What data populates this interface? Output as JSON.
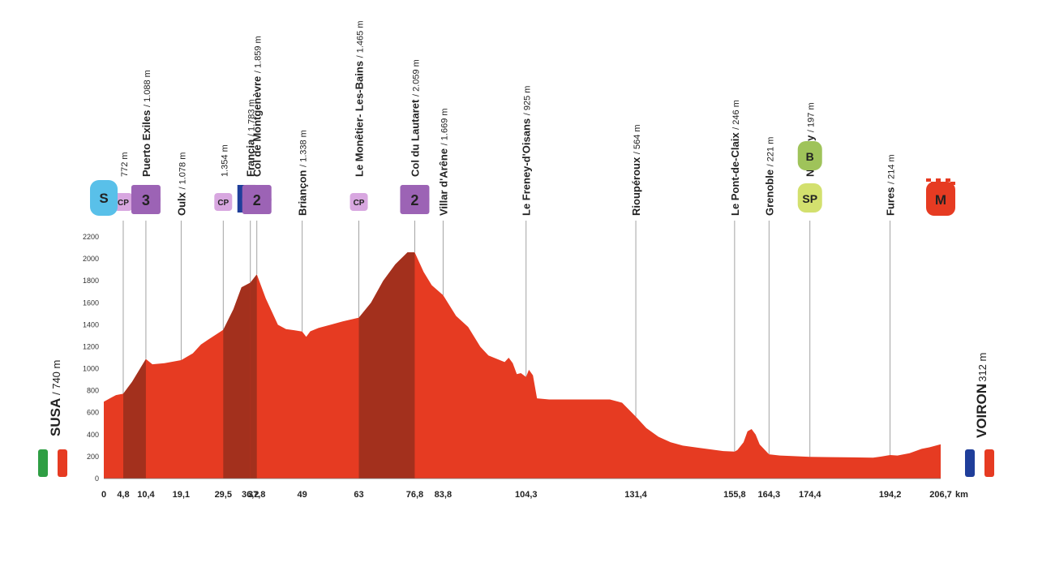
{
  "chart_data": {
    "type": "area",
    "unit_km": "km",
    "ylim": [
      0,
      2300
    ],
    "yticks": [
      0,
      200,
      400,
      600,
      800,
      1000,
      1200,
      1400,
      1600,
      1800,
      2000,
      2200
    ],
    "xticks": [
      "0",
      "4,8",
      "10,4",
      "19,1",
      "29,5",
      "36,2",
      "37,8",
      "49",
      "63",
      "76,8",
      "83,8",
      "104,3",
      "131,4",
      "155,8",
      "164,3",
      "174,4",
      "194,2",
      "206,7"
    ],
    "xtick_values": [
      0,
      4.8,
      10.4,
      19.1,
      29.5,
      36.2,
      37.8,
      49,
      63,
      76.8,
      83.8,
      104.3,
      131.4,
      155.8,
      164.3,
      174.4,
      194.2,
      206.7
    ],
    "start": {
      "name": "SUSA",
      "altitude": "/ 740 m"
    },
    "finish": {
      "name": "VOIRON",
      "altitude": "/ 312 m"
    },
    "profile": {
      "x": [
        0,
        2,
        3,
        4.8,
        7,
        10.4,
        12,
        15,
        19.1,
        22,
        24,
        26,
        29.5,
        32,
        34,
        36.2,
        37.8,
        40,
        43,
        45,
        47,
        49,
        50,
        51,
        53,
        56,
        59,
        63,
        66,
        69,
        72,
        75,
        76.8,
        79,
        81,
        83.8,
        87,
        90,
        93,
        95,
        99,
        100,
        101,
        102,
        103,
        104.3,
        105,
        106,
        107,
        110,
        115,
        120,
        125,
        128,
        131.4,
        134,
        137,
        140,
        143,
        147,
        150,
        153,
        155.8,
        156.5,
        158,
        159,
        160,
        161,
        162,
        164.3,
        167,
        170,
        174.4,
        180,
        185,
        190,
        192,
        194.2,
        196,
        199,
        202,
        204,
        206.7
      ],
      "y": [
        700,
        740,
        760,
        772,
        880,
        1088,
        1040,
        1050,
        1078,
        1140,
        1220,
        1270,
        1354,
        1540,
        1740,
        1783,
        1859,
        1640,
        1400,
        1360,
        1350,
        1338,
        1290,
        1340,
        1370,
        1400,
        1430,
        1465,
        1600,
        1800,
        1950,
        2059,
        2059,
        1880,
        1760,
        1669,
        1480,
        1380,
        1200,
        1120,
        1060,
        1100,
        1050,
        950,
        960,
        925,
        990,
        940,
        730,
        720,
        720,
        720,
        720,
        690,
        564,
        460,
        380,
        330,
        300,
        280,
        265,
        250,
        246,
        260,
        330,
        430,
        450,
        400,
        310,
        221,
        210,
        205,
        197,
        195,
        193,
        190,
        200,
        214,
        210,
        230,
        270,
        285,
        312
      ]
    },
    "steep_segments": [
      [
        4.8,
        10.4
      ],
      [
        29.5,
        36.2
      ],
      [
        36.2,
        37.8
      ],
      [
        63,
        76.8
      ]
    ],
    "colors": {
      "fill": "#e63b22",
      "steep": "#a3301d",
      "sprint": "#d3e06e",
      "bonus": "#9fc35a",
      "climb": "#9c63b5",
      "cp": "#d8a7e0",
      "start": "#59c0e9",
      "finish": "#e63b22"
    },
    "points": [
      {
        "km": 4.8,
        "name": "",
        "altitude": "772 m",
        "badge": "CP",
        "badge_type": "cp"
      },
      {
        "km": 10.4,
        "name": "Puerto Exiles",
        "altitude": "/ 1.088 m",
        "badge": "3",
        "badge_type": "climb"
      },
      {
        "km": 19.1,
        "name": "Oulx",
        "altitude": "/ 1.078 m",
        "badge": "",
        "badge_type": ""
      },
      {
        "km": 29.5,
        "name": "",
        "altitude": "1.354 m",
        "badge": "CP",
        "badge_type": "cp"
      },
      {
        "km": 36.2,
        "name": "Francia",
        "altitude": "/ 1.783 m",
        "badge": "",
        "badge_type": "flag-fr"
      },
      {
        "km": 37.8,
        "name": "Col de Montgenèvre",
        "altitude": "/ 1.859 m",
        "badge": "2",
        "badge_type": "climb"
      },
      {
        "km": 49,
        "name": "Briançon",
        "altitude": "/ 1.338 m",
        "badge": "",
        "badge_type": ""
      },
      {
        "km": 63,
        "name": "Le Monêtier- Les-Bains",
        "altitude": "/ 1.465 m",
        "badge": "CP",
        "badge_type": "cp"
      },
      {
        "km": 76.8,
        "name": "Col du Lautaret",
        "altitude": "/ 2.059 m",
        "badge": "2",
        "badge_type": "climb"
      },
      {
        "km": 83.8,
        "name": "Villar d'Arêne",
        "altitude": "/ 1.669 m",
        "badge": "",
        "badge_type": ""
      },
      {
        "km": 104.3,
        "name": "Le Freney-d'Oisans",
        "altitude": "/ 925 m",
        "badge": "",
        "badge_type": ""
      },
      {
        "km": 131.4,
        "name": "Rioupéroux",
        "altitude": "/ 564 m",
        "badge": "",
        "badge_type": ""
      },
      {
        "km": 155.8,
        "name": "Le Pont-de-Claix",
        "altitude": "/ 246 m",
        "badge": "",
        "badge_type": ""
      },
      {
        "km": 164.3,
        "name": "Grenoble",
        "altitude": "/ 221 m",
        "badge": "",
        "badge_type": ""
      },
      {
        "km": 174.4,
        "name": "Noyarey",
        "altitude": "/ 197 m",
        "badge": "SP",
        "badge_type": "sprint",
        "badge2": "B"
      },
      {
        "km": 194.2,
        "name": "Fures",
        "altitude": "/ 214 m",
        "badge": "",
        "badge_type": ""
      },
      {
        "km": 206.7,
        "name": "",
        "altitude": "",
        "badge": "M",
        "badge_type": "finish"
      }
    ],
    "start_badge": "S"
  }
}
